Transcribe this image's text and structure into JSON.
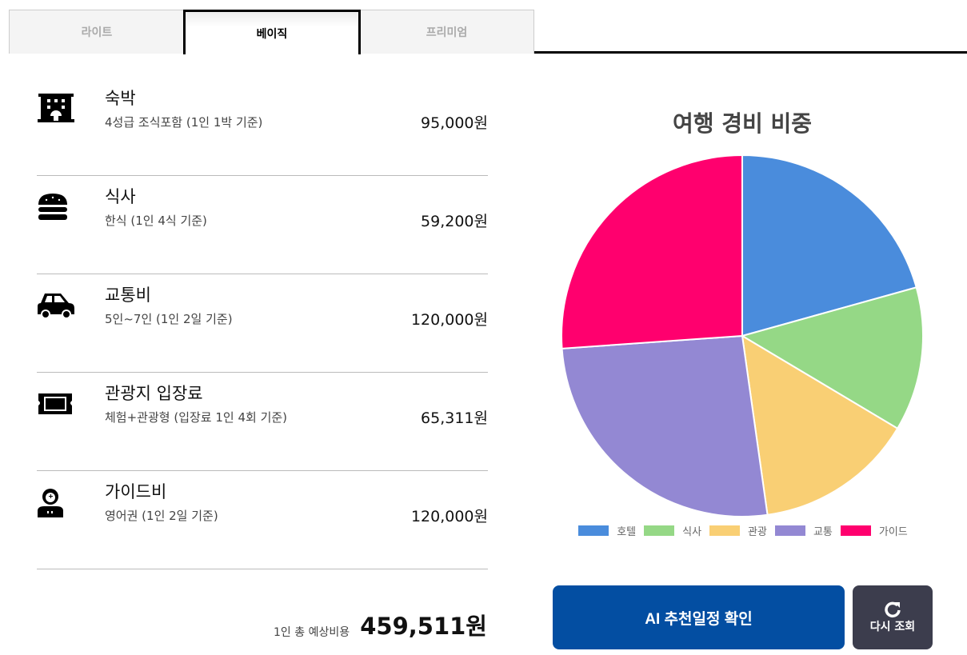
{
  "tabs": [
    {
      "label": "라이트",
      "active": false
    },
    {
      "label": "베이직",
      "active": true
    },
    {
      "label": "프리미엄",
      "active": false
    }
  ],
  "items": [
    {
      "icon": "hotel-icon",
      "title": "숙박",
      "desc": "4성급 조식포함 (1인 1박 기준)",
      "price": "95,000원"
    },
    {
      "icon": "burger-icon",
      "title": "식사",
      "desc": "한식 (1인 4식 기준)",
      "price": "59,200원"
    },
    {
      "icon": "car-icon",
      "title": "교통비",
      "desc": "5인~7인 (1인 2일 기준)",
      "price": "120,000원"
    },
    {
      "icon": "ticket-icon",
      "title": "관광지 입장료",
      "desc": "체험+관광형 (입장료 1인 4회 기준)",
      "price": "65,311원"
    },
    {
      "icon": "guide-icon",
      "title": "가이드비",
      "desc": "영어권 (1인 2일 기준)",
      "price": "120,000원"
    }
  ],
  "total": {
    "label": "1인 총 예상비용",
    "value": "459,511원"
  },
  "chart_data": {
    "type": "pie",
    "title": "여행 경비 비중",
    "categories": [
      "호텔",
      "식사",
      "관광",
      "교통",
      "가이드"
    ],
    "values": [
      95000,
      59200,
      65311,
      120000,
      120000
    ],
    "colors": [
      "#4a8cdc",
      "#95d886",
      "#f9cf74",
      "#9388d3",
      "#ff006e"
    ],
    "legend": "bottom"
  },
  "buttons": {
    "ai": "AI 추천일정 확인",
    "refresh": "다시 조회"
  }
}
